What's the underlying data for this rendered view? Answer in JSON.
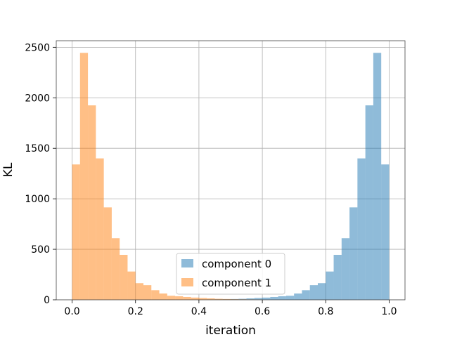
{
  "chart_data": {
    "type": "bar",
    "subtype": "histogram",
    "xlabel": "iteration",
    "ylabel": "KL",
    "xlim": [
      -0.05,
      1.05
    ],
    "ylim": [
      0,
      2565
    ],
    "xticks": [
      0.0,
      0.2,
      0.4,
      0.6,
      0.8,
      1.0
    ],
    "xtick_labels": [
      "0.0",
      "0.2",
      "0.4",
      "0.6",
      "0.8",
      "1.0"
    ],
    "yticks": [
      0,
      500,
      1000,
      1500,
      2000,
      2500
    ],
    "ytick_labels": [
      "0",
      "500",
      "1000",
      "1500",
      "2000",
      "2500"
    ],
    "grid": true,
    "legend_position": "lower-center",
    "bin_width": 0.025,
    "series": [
      {
        "name": "component 0",
        "color": "#1f77b4",
        "opacity": 0.5,
        "bin_starts": [
          0.4,
          0.425,
          0.45,
          0.475,
          0.5,
          0.525,
          0.55,
          0.575,
          0.6,
          0.625,
          0.65,
          0.675,
          0.7,
          0.725,
          0.75,
          0.775,
          0.8,
          0.825,
          0.85,
          0.875,
          0.9,
          0.925,
          0.95,
          0.975
        ],
        "values": [
          3,
          4,
          5,
          6,
          8,
          10,
          14,
          18,
          22,
          28,
          35,
          40,
          62,
          95,
          145,
          165,
          280,
          445,
          610,
          915,
          1400,
          1925,
          2445,
          1340
        ]
      },
      {
        "name": "component 1",
        "color": "#ff7f0e",
        "opacity": 0.5,
        "bin_starts": [
          0.0,
          0.025,
          0.05,
          0.075,
          0.1,
          0.125,
          0.15,
          0.175,
          0.2,
          0.225,
          0.25,
          0.275,
          0.3,
          0.325,
          0.35,
          0.375,
          0.4,
          0.425,
          0.45,
          0.475,
          0.5,
          0.525,
          0.55,
          0.575
        ],
        "values": [
          1340,
          2445,
          1925,
          1400,
          915,
          610,
          445,
          280,
          165,
          145,
          95,
          62,
          40,
          35,
          28,
          22,
          18,
          14,
          10,
          8,
          6,
          5,
          4,
          3
        ]
      }
    ]
  }
}
